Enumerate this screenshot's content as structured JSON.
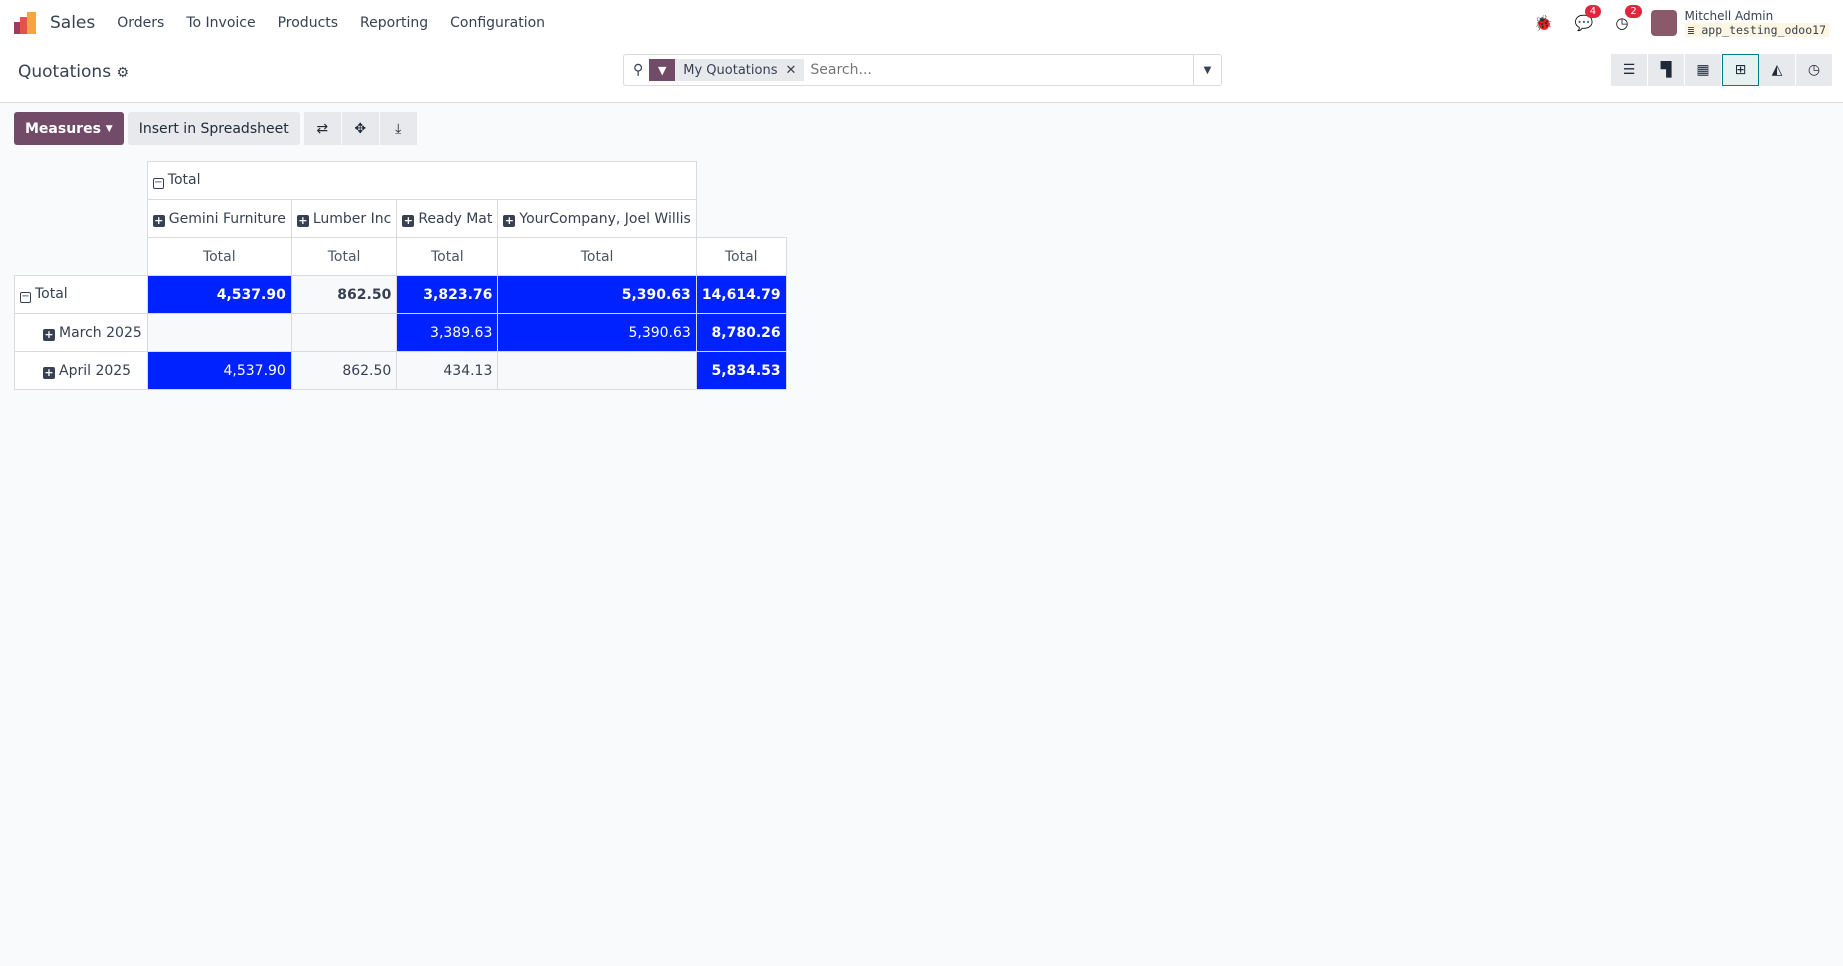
{
  "navbar": {
    "app": "Sales",
    "menu": [
      "Orders",
      "To Invoice",
      "Products",
      "Reporting",
      "Configuration"
    ],
    "messages_count": "4",
    "activities_count": "2",
    "user": "Mitchell Admin",
    "database": "app_testing_odoo17"
  },
  "control": {
    "title": "Quotations",
    "facet": "My Quotations",
    "search_placeholder": "Search...",
    "views": [
      "list",
      "kanban",
      "calendar",
      "pivot",
      "graph",
      "activity"
    ],
    "active_view": "pivot"
  },
  "toolbar": {
    "measures": "Measures",
    "insert": "Insert in Spreadsheet"
  },
  "colors": {
    "accent": "#714b67",
    "heat": "#0022ff"
  },
  "pivot": {
    "col_root": "Total",
    "columns": [
      "Gemini Furniture",
      "Lumber Inc",
      "Ready Mat",
      "YourCompany, Joel Willis"
    ],
    "measure": "Total",
    "rows": [
      {
        "label": "Total",
        "values": [
          "4,537.90",
          "862.50",
          "3,823.76",
          "5,390.63",
          "14,614.79"
        ],
        "hi": [
          1,
          0,
          1,
          1,
          1
        ]
      },
      {
        "label": "March 2025",
        "values": [
          "",
          "",
          "3,389.63",
          "5,390.63",
          "8,780.26"
        ],
        "hi": [
          0,
          0,
          1,
          1,
          1
        ]
      },
      {
        "label": "April 2025",
        "values": [
          "4,537.90",
          "862.50",
          "434.13",
          "",
          "5,834.53"
        ],
        "hi": [
          1,
          0,
          0,
          0,
          1
        ]
      }
    ]
  }
}
